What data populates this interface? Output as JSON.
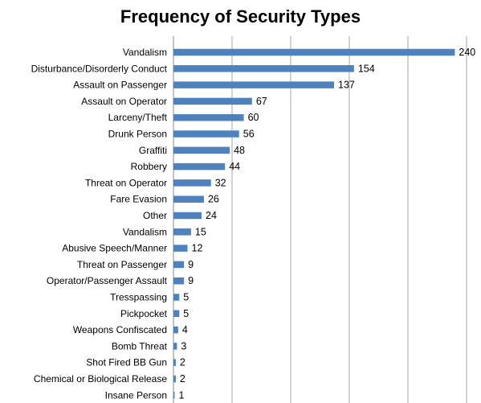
{
  "chart_data": {
    "type": "bar",
    "orientation": "horizontal",
    "title": "Frequency of Security Types",
    "categories": [
      "Vandalism",
      "Disturbance/Disorderly Conduct",
      "Assault on Passenger",
      "Assault on Operator",
      "Larceny/Theft",
      "Drunk Person",
      "Graffiti",
      "Robbery",
      "Threat on Operator",
      "Fare Evasion",
      "Other",
      "Vandalism",
      "Abusive Speech/Manner",
      "Threat on Passenger",
      "Operator/Passenger Assault",
      "Tresspassing",
      "Pickpocket",
      "Weapons Confiscated",
      "Bomb Threat",
      "Shot Fired BB Gun",
      "Chemical or Biological Release",
      "Insane Person"
    ],
    "values": [
      240,
      154,
      137,
      67,
      60,
      56,
      48,
      44,
      32,
      26,
      24,
      15,
      12,
      9,
      9,
      5,
      5,
      4,
      3,
      2,
      2,
      1
    ],
    "xlim": [
      0,
      250
    ],
    "gridlines": "vertical",
    "bar_color": "#4f81bd",
    "grid_color": "#a6a6a6",
    "data_labels": true,
    "legend": "none"
  }
}
